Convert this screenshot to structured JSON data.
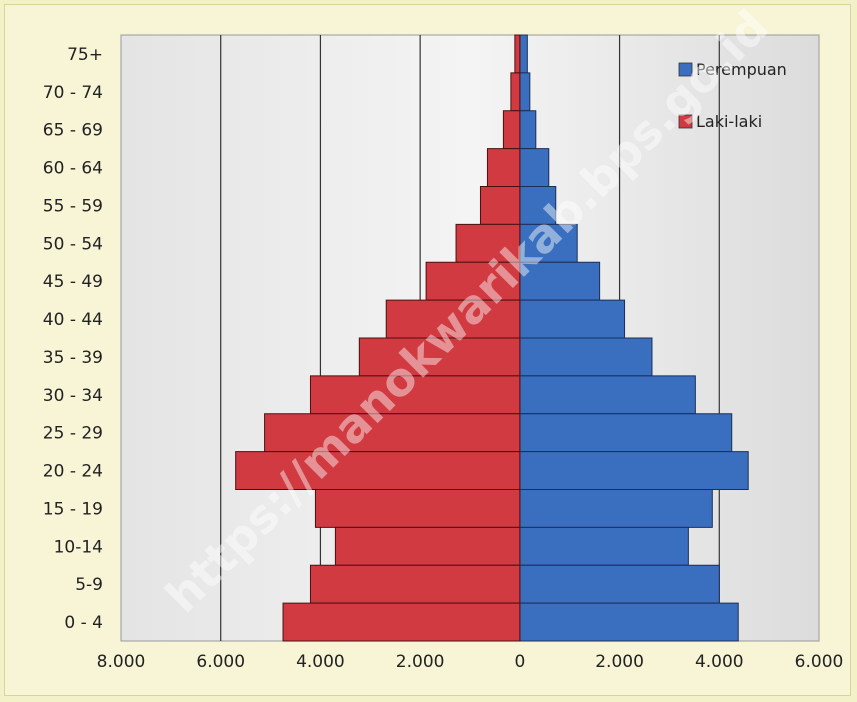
{
  "chart_data": {
    "type": "bar",
    "orientation": "horizontal",
    "categories": [
      "75+",
      "70 - 74",
      "65 - 69",
      "60 - 64",
      "55 - 59",
      "50 - 54",
      "45 - 49",
      "40 - 44",
      "35 - 39",
      "30 - 34",
      "25 - 29",
      "20 - 24",
      "15 - 19",
      "10-14",
      "5-9",
      "0 - 4"
    ],
    "series": [
      {
        "name": "Perempuan",
        "color": "#3a6fc0",
        "values": [
          150,
          200,
          320,
          580,
          720,
          1150,
          1600,
          2100,
          2650,
          3520,
          4250,
          4580,
          3860,
          3380,
          4000,
          4380
        ]
      },
      {
        "name": "Laki-laki",
        "color": "#d03a40",
        "values": [
          100,
          180,
          330,
          650,
          790,
          1280,
          1880,
          2680,
          3220,
          4200,
          5120,
          5700,
          4100,
          3700,
          4200,
          4750
        ]
      }
    ],
    "xlim": [
      -8000,
      6000
    ],
    "xticks": [
      "8.000",
      "6.000",
      "4.000",
      "2.000",
      "0",
      "2.000",
      "4.000",
      "6.000"
    ],
    "xtick_values": [
      -8000,
      -6000,
      -4000,
      -2000,
      0,
      2000,
      4000,
      6000
    ],
    "grid": true,
    "legend": "top-right"
  },
  "watermark": "https://manokwarikab.bps.go.id"
}
